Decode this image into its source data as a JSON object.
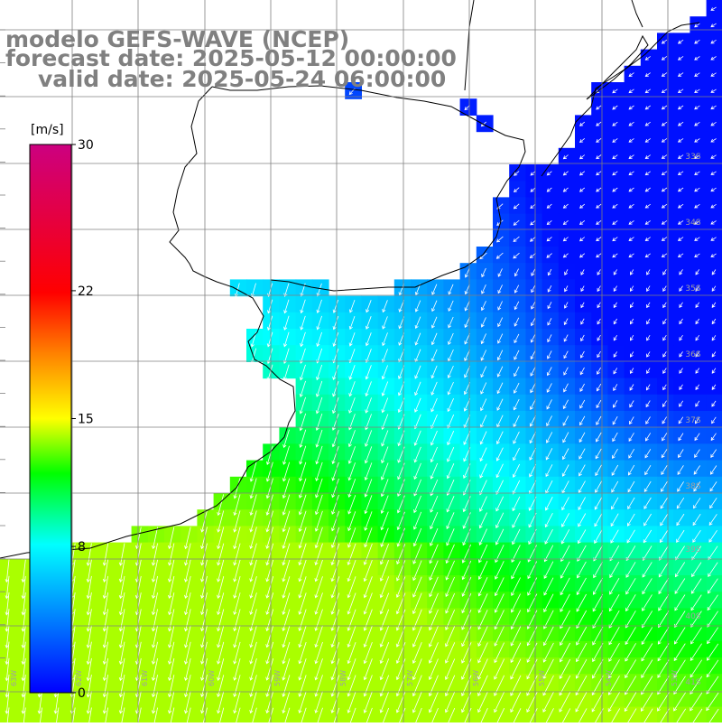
{
  "header": {
    "line1": "modelo GEFS-WAVE (NCEP)",
    "line2": "forecast date: 2025-05-12 00:00:00",
    "line3": "valid date: 2025-05-24 06:00:00"
  },
  "colorbar": {
    "unit": "[m/s]",
    "min": 0,
    "max": 30,
    "ticks": [
      "30",
      "22",
      "15",
      "8",
      "0"
    ],
    "tick_values": [
      30,
      22,
      15,
      8,
      0
    ]
  },
  "map": {
    "variable": "wind speed",
    "lat_labels": [
      "33S",
      "34S",
      "35S",
      "36S",
      "37S",
      "38S",
      "39S",
      "40S",
      "41S"
    ],
    "lon_labels": [
      "63W",
      "62W",
      "61W",
      "60W",
      "59W",
      "58W",
      "57W",
      "56W",
      "55W",
      "54W",
      "53W"
    ],
    "colors": {
      "low": "#0000ff",
      "mid": "#00ffff",
      "high": "#ffff00",
      "max": "#cc0080",
      "coast": "#000000",
      "arrow": "#ffffff",
      "grid": "#808080"
    }
  }
}
